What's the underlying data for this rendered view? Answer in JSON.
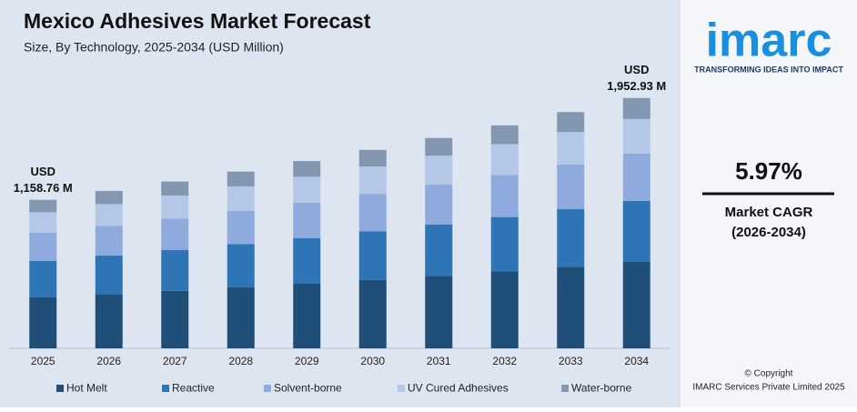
{
  "chart_data": {
    "type": "stacked_bar",
    "title": "Mexico Adhesives Market Forecast",
    "subtitle": "Size, By Technology, 2025-2034 (USD Million)",
    "categories": [
      "2025",
      "2026",
      "2027",
      "2028",
      "2029",
      "2030",
      "2031",
      "2032",
      "2033",
      "2034"
    ],
    "series": [
      {
        "name": "Hot Melt",
        "color": "#1f4e79",
        "values": [
          399.8,
          423.7,
          448.8,
          475.8,
          504.0,
          534.1,
          566.1,
          600.0,
          635.8,
          673.8
        ]
      },
      {
        "name": "Reactive",
        "color": "#2e75b6",
        "values": [
          282.7,
          299.6,
          317.4,
          336.5,
          356.5,
          377.7,
          400.4,
          424.3,
          449.7,
          476.5
        ]
      },
      {
        "name": "Solvent-borne",
        "color": "#8faadc",
        "values": [
          219.0,
          232.1,
          245.9,
          260.6,
          276.1,
          292.6,
          310.1,
          328.7,
          348.3,
          369.1
        ]
      },
      {
        "name": "UV Cured Adhesives",
        "color": "#b4c7e7",
        "values": [
          159.9,
          169.5,
          179.5,
          190.3,
          201.6,
          213.6,
          226.5,
          240.0,
          254.3,
          269.5
        ]
      },
      {
        "name": "Water-borne",
        "color": "#8497b0",
        "values": [
          97.3,
          103.2,
          109.3,
          115.8,
          122.7,
          130.0,
          137.8,
          146.1,
          154.8,
          164.0
        ]
      }
    ],
    "annotations": [
      {
        "lines": [
          "USD",
          "1,158.76 M"
        ]
      },
      {
        "lines": [
          "USD",
          "1,952.93 M"
        ]
      }
    ],
    "ylim": [
      0,
      2100
    ]
  },
  "sidebar": {
    "logo": "imarc",
    "tagline": "TRANSFORMING IDEAS INTO IMPACT",
    "cagr": "5.97%",
    "cagr_label": "Market CAGR",
    "cagr_period": "(2026-2034)",
    "copyright": "© Copyright",
    "company": "IMARC Services Private Limited 2025"
  }
}
